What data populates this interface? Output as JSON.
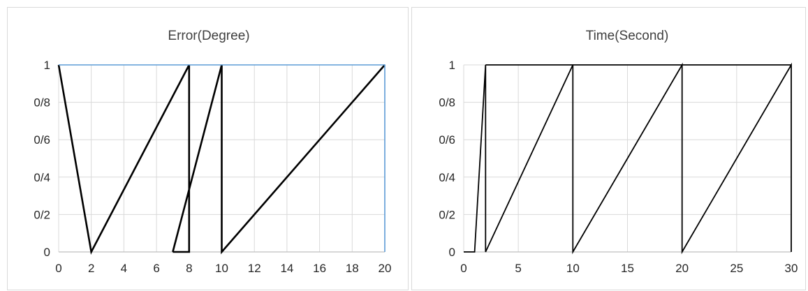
{
  "chart_data": [
    {
      "type": "line",
      "title": "Error(Degree)",
      "xlim": [
        0,
        20
      ],
      "ylim": [
        0,
        1
      ],
      "x_ticks": [
        "0",
        "2",
        "4",
        "6",
        "8",
        "10",
        "12",
        "14",
        "16",
        "18",
        "20"
      ],
      "y_ticks": [
        "0",
        "0/2",
        "0/4",
        "0/6",
        "0/8",
        "1"
      ],
      "grid": true,
      "series": [
        {
          "color": "#000000",
          "points": [
            [
              0,
              1
            ],
            [
              2,
              0
            ],
            [
              8,
              1
            ]
          ]
        },
        {
          "color": "#000000",
          "points": [
            [
              7,
              0
            ],
            [
              8,
              0
            ],
            [
              8,
              1
            ]
          ]
        },
        {
          "color": "#000000",
          "points": [
            [
              7,
              0
            ],
            [
              10,
              1
            ]
          ]
        },
        {
          "color": "#000000",
          "points": [
            [
              10,
              1
            ],
            [
              10,
              0
            ],
            [
              20,
              1
            ]
          ]
        },
        {
          "color": "#5b9bd5",
          "points": [
            [
              0,
              1
            ],
            [
              20,
              1
            ],
            [
              20,
              0
            ]
          ]
        }
      ]
    },
    {
      "type": "line",
      "title": "Time(Second)",
      "xlim": [
        0,
        30
      ],
      "ylim": [
        0,
        1
      ],
      "x_ticks": [
        "0",
        "5",
        "10",
        "15",
        "20",
        "25",
        "30"
      ],
      "y_ticks": [
        "0",
        "0/2",
        "0/4",
        "0/6",
        "0/8",
        "1"
      ],
      "grid": true,
      "series": [
        {
          "color": "#000000",
          "points": [
            [
              0,
              0
            ],
            [
              1,
              0
            ],
            [
              2,
              1
            ],
            [
              2,
              0
            ],
            [
              10,
              1
            ],
            [
              10,
              0
            ],
            [
              20,
              1
            ],
            [
              20,
              0
            ],
            [
              30,
              1
            ],
            [
              30,
              0
            ]
          ]
        },
        {
          "color": "#000000",
          "points": [
            [
              2,
              1
            ],
            [
              30,
              1
            ]
          ]
        }
      ]
    }
  ]
}
